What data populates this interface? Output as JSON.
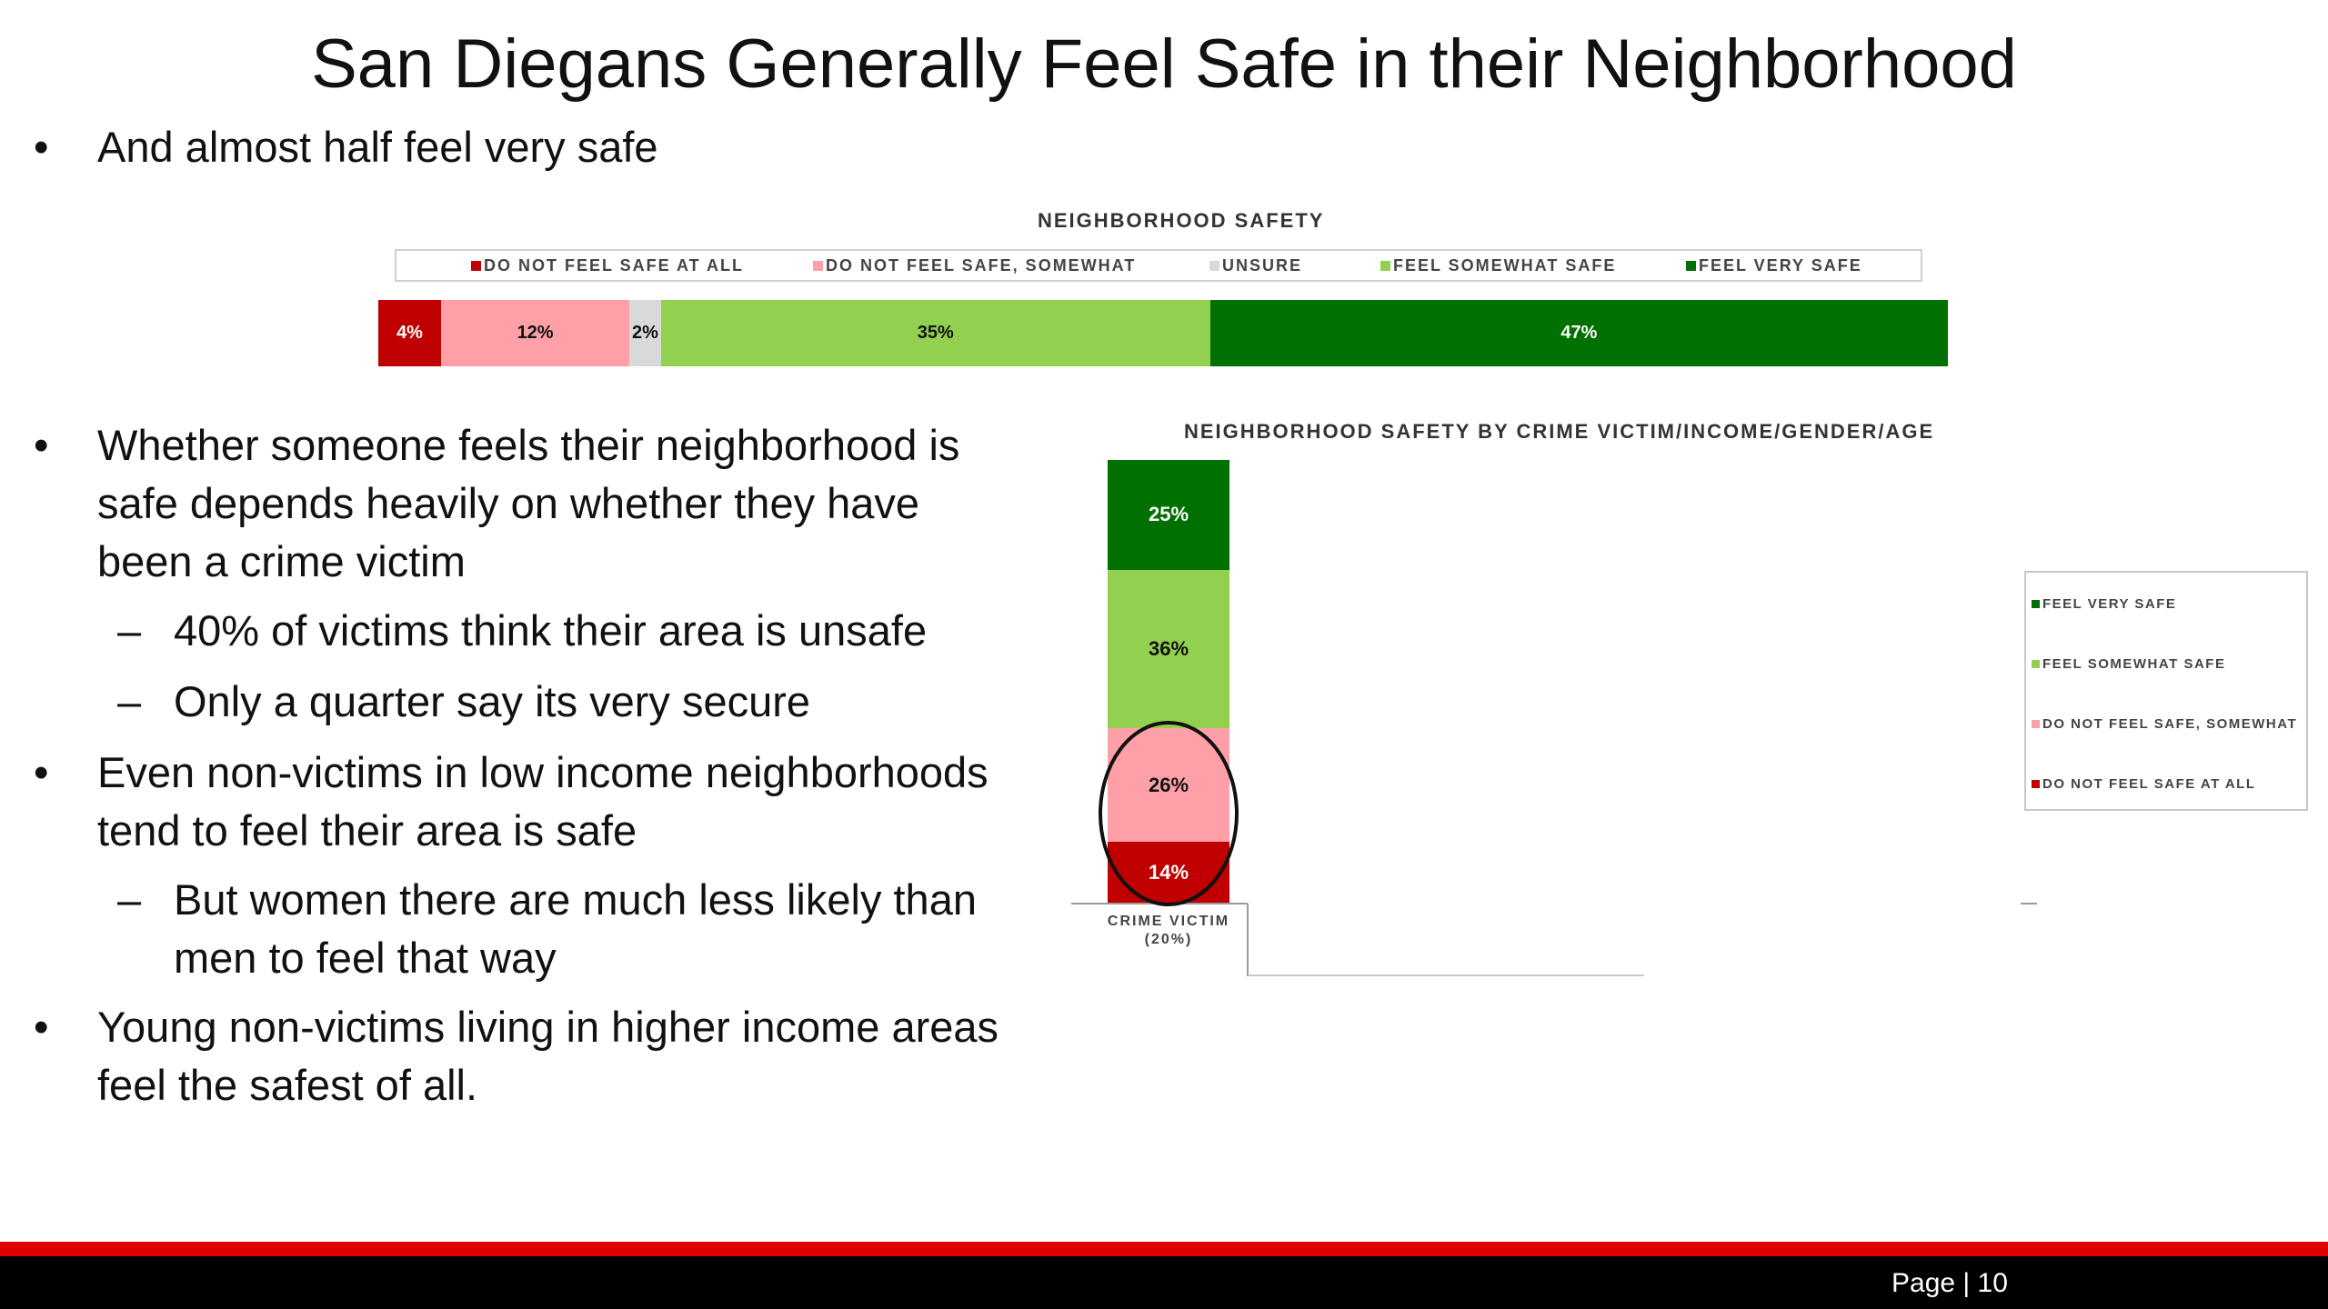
{
  "title": "San Diegans Generally Feel Safe in their Neighborhood",
  "bullets": [
    {
      "text": "And almost half feel very safe"
    },
    {
      "text": [
        "Whether someone feels their neighborhood is",
        "safe depends heavily on whether they have",
        "been a crime victim"
      ]
    },
    {
      "sub": "40% of victims think their area is unsafe"
    },
    {
      "sub": "Only a quarter say its very secure"
    },
    {
      "text": [
        "Even non-victims in low income neighborhoods",
        "tend to feel their area is safe"
      ]
    },
    {
      "sub": [
        "But women there are much less likely than",
        "men to feel that way"
      ]
    },
    {
      "text": [
        "Young non-victims living in higher income areas",
        "feel the safest of all."
      ]
    }
  ],
  "bullet_mark": "•",
  "sub_mark": "–",
  "colors": {
    "not_safe_at_all": "#c00000",
    "not_safe_somewhat": "#ffa0a8",
    "unsure": "#d9d9d9",
    "somewhat_safe": "#92d050",
    "very_safe": "#007000",
    "footer_red": "#e00000"
  },
  "chart_data": [
    {
      "type": "bar",
      "orientation": "horizontal-stacked",
      "title": "NEIGHBORHOOD SAFETY",
      "legend_position": "top",
      "series": [
        {
          "name": "DO NOT FEEL SAFE AT ALL",
          "values": [
            4
          ],
          "label": "4%"
        },
        {
          "name": "DO NOT FEEL SAFE, SOMEWHAT",
          "values": [
            12
          ],
          "label": "12%"
        },
        {
          "name": "UNSURE",
          "values": [
            2
          ],
          "label": "2%"
        },
        {
          "name": "FEEL SOMEWHAT SAFE",
          "values": [
            35
          ],
          "label": "35%"
        },
        {
          "name": "FEEL VERY SAFE",
          "values": [
            47
          ],
          "label": "47%"
        }
      ]
    },
    {
      "type": "bar",
      "orientation": "vertical-stacked",
      "title": "NEIGHBORHOOD SAFETY BY CRIME VICTIM/INCOME/GENDER/AGE",
      "legend_position": "right",
      "categories": [
        "CRIME VICTIM (20%)"
      ],
      "category_lines": [
        "CRIME VICTIM",
        "(20%)"
      ],
      "legend": [
        "FEEL VERY SAFE",
        "FEEL SOMEWHAT SAFE",
        "DO NOT FEEL SAFE, SOMEWHAT",
        "DO NOT FEEL SAFE AT ALL"
      ],
      "series": [
        {
          "name": "DO NOT FEEL SAFE AT ALL",
          "values": [
            14
          ],
          "label": "14%"
        },
        {
          "name": "DO NOT FEEL SAFE, SOMEWHAT",
          "values": [
            26
          ],
          "label": "26%"
        },
        {
          "name": "FEEL SOMEWHAT SAFE",
          "values": [
            36
          ],
          "label": "36%"
        },
        {
          "name": "FEEL VERY SAFE",
          "values": [
            25
          ],
          "label": "25%"
        }
      ],
      "annotation": "circle around DO NOT FEEL SAFE segments"
    }
  ],
  "footer": {
    "page_label": "Page | 10"
  }
}
